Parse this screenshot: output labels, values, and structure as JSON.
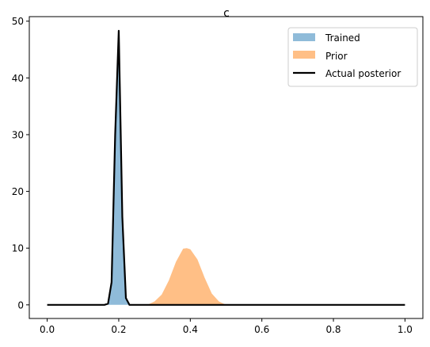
{
  "chart_data": {
    "type": "area",
    "title": "c",
    "xlabel": "",
    "ylabel": "",
    "xlim": [
      -0.05,
      1.05
    ],
    "ylim": [
      -2.4,
      50.8
    ],
    "xticks": [
      0.0,
      0.2,
      0.4,
      0.6,
      0.8,
      1.0
    ],
    "xtick_labels": [
      "0.0",
      "0.2",
      "0.4",
      "0.6",
      "0.8",
      "1.0"
    ],
    "yticks": [
      0,
      10,
      20,
      30,
      40,
      50
    ],
    "ytick_labels": [
      "0",
      "10",
      "20",
      "30",
      "40",
      "50"
    ],
    "grid": false,
    "legend_position": "top-right",
    "series": [
      {
        "name": "Trained",
        "kind": "area",
        "color": "#8fbbd9",
        "x": [
          0.17,
          0.18,
          0.19,
          0.2,
          0.21,
          0.22,
          0.23
        ],
        "y": [
          0.0,
          4.5,
          28.0,
          48.0,
          16.0,
          1.0,
          0.0
        ]
      },
      {
        "name": "Prior",
        "kind": "area",
        "color": "#ffbf86",
        "x": [
          0.28,
          0.3,
          0.32,
          0.34,
          0.36,
          0.38,
          0.39,
          0.4,
          0.42,
          0.44,
          0.46,
          0.48,
          0.5
        ],
        "y": [
          0.0,
          0.6,
          1.8,
          4.3,
          7.6,
          9.9,
          10.0,
          9.8,
          8.0,
          4.8,
          2.0,
          0.6,
          0.0
        ]
      },
      {
        "name": "Actual posterior",
        "kind": "line",
        "color": "#000000",
        "x": [
          0.0,
          0.16,
          0.17,
          0.18,
          0.19,
          0.2,
          0.21,
          0.22,
          0.23,
          1.0
        ],
        "y": [
          0.0,
          0.0,
          0.2,
          4.0,
          30.0,
          48.3,
          15.5,
          1.2,
          0.0,
          0.0
        ]
      }
    ]
  }
}
